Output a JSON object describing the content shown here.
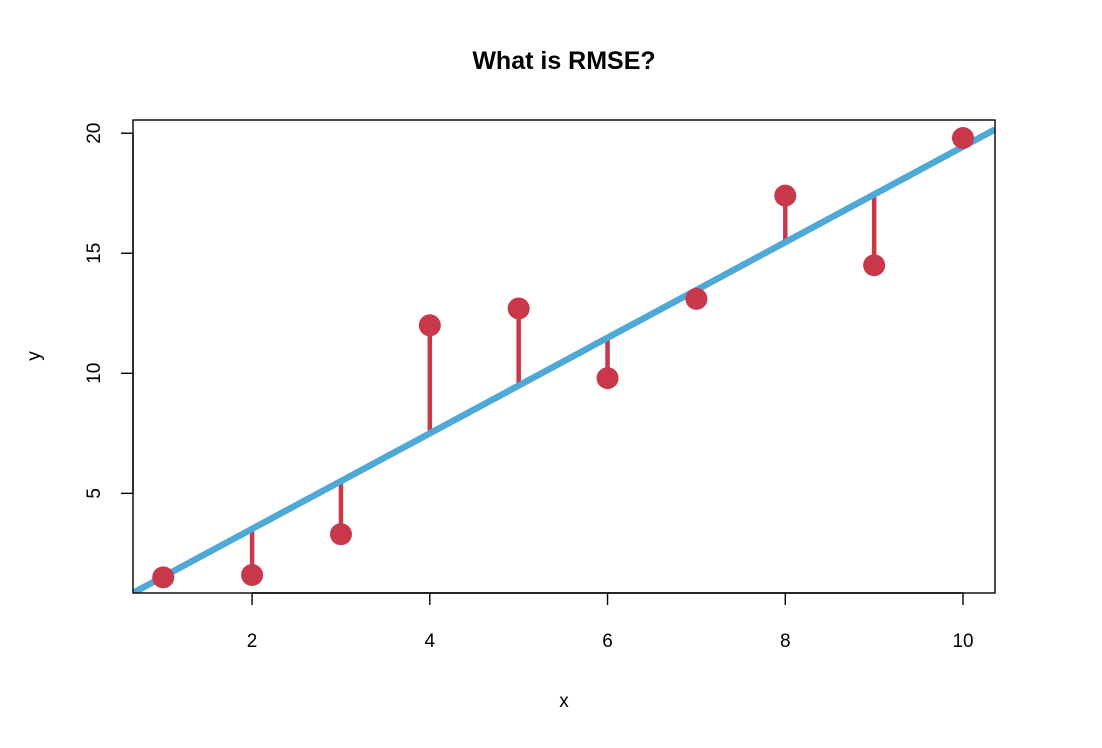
{
  "chart_data": {
    "type": "scatter",
    "title": "What is RMSE?",
    "xlabel": "x",
    "ylabel": "y",
    "xlim": [
      0.66,
      10.36
    ],
    "ylim": [
      0.85,
      20.55
    ],
    "x_ticks": [
      2,
      4,
      6,
      8,
      10
    ],
    "y_ticks": [
      5,
      10,
      15,
      20
    ],
    "grid": false,
    "series": [
      {
        "type": "scatter",
        "x": [
          1,
          2,
          3,
          4,
          5,
          6,
          7,
          8,
          9,
          10
        ],
        "y": [
          1.5,
          1.6,
          3.3,
          12.0,
          12.7,
          9.8,
          13.1,
          17.4,
          14.5,
          19.8
        ],
        "color": "#c8374a"
      },
      {
        "type": "fit_line",
        "intercept": -0.46,
        "slope": 1.99,
        "color": "#4ea9d6"
      }
    ],
    "residual_color": "#c8374a"
  }
}
